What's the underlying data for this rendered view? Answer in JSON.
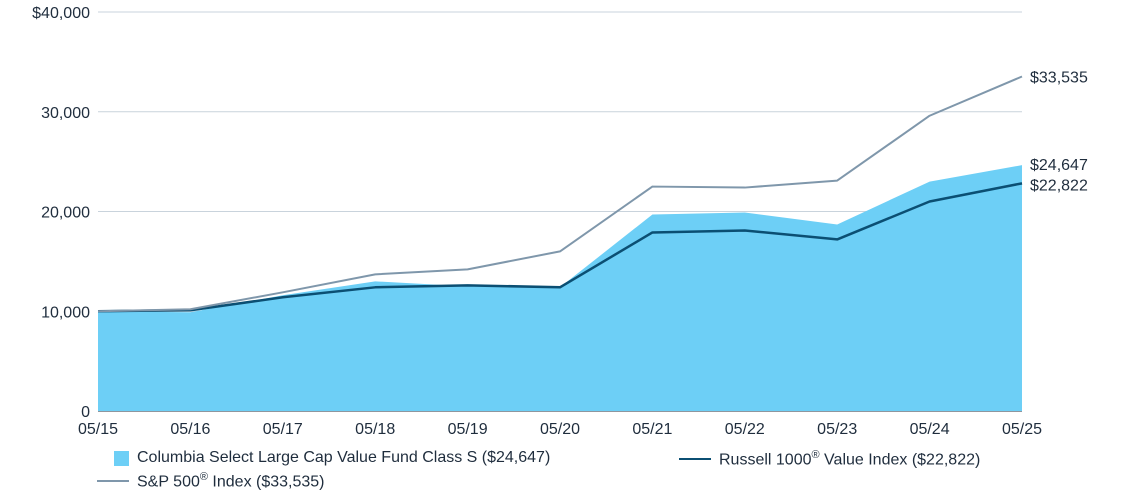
{
  "chart_data": {
    "type": "area",
    "categories": [
      "05/15",
      "05/16",
      "05/17",
      "05/18",
      "05/19",
      "05/20",
      "05/21",
      "05/22",
      "05/23",
      "05/24",
      "05/25"
    ],
    "y_ticks": [
      "$40,000",
      "30,000",
      "20,000",
      "10,000",
      "0"
    ],
    "ylim": [
      0,
      40000
    ],
    "grid": true,
    "legend_position": "bottom",
    "series": [
      {
        "name": "Columbia Select Large Cap Value Fund Class S ($24,647)",
        "style": "area",
        "color": "#6dcff6",
        "end_label": "$24,647",
        "values": [
          10000,
          9900,
          11600,
          13000,
          12500,
          12400,
          19700,
          19900,
          18700,
          23000,
          24647
        ]
      },
      {
        "name": "Russell 1000® Value Index ($22,822)",
        "legend_parts": [
          "Russell 1000",
          "®",
          " Value Index ($22,822)"
        ],
        "style": "line",
        "color": "#0b4f73",
        "end_label": "$22,822",
        "values": [
          10000,
          10100,
          11400,
          12400,
          12600,
          12400,
          17900,
          18100,
          17200,
          21000,
          22822
        ]
      },
      {
        "name": "S&P 500® Index ($33,535)",
        "legend_parts": [
          "S&P 500",
          "®",
          " Index ($33,535)"
        ],
        "style": "line",
        "color": "#7f97ab",
        "end_label": "$33,535",
        "values": [
          10000,
          10200,
          11900,
          13700,
          14200,
          16000,
          22500,
          22400,
          23100,
          29600,
          33535
        ]
      }
    ]
  }
}
